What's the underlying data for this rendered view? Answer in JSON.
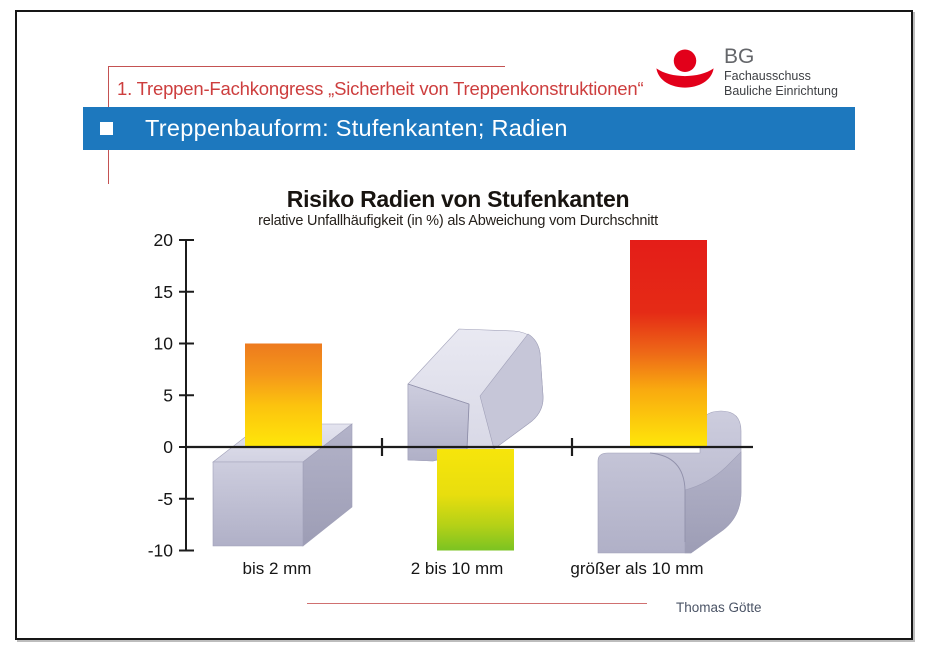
{
  "slide": {
    "congress_line": "1. Treppen-Fachkongress „Sicherheit von Treppenkonstruktionen“",
    "logo": {
      "org": "BG",
      "dept_line1": "Fachausschuss",
      "dept_line2": "Bauliche Einrichtung"
    },
    "title_bar": {
      "title": "Treppenbauform: Stufenkanten; Radien"
    },
    "author": "Thomas Götte"
  },
  "chart_data": {
    "type": "bar",
    "title": "Risiko Radien von Stufenkanten",
    "subtitle": "relative Unfallhäufigkeit (in %) als Abweichung vom Durchschnitt",
    "categories": [
      "bis 2 mm",
      "2 bis 10 mm",
      "größer als 10 mm"
    ],
    "values": [
      10,
      -10,
      20
    ],
    "unit": "%",
    "ylim": [
      -10,
      20
    ],
    "yticks": [
      20,
      15,
      10,
      5,
      0,
      -5,
      -10
    ],
    "grid": false,
    "legend": null,
    "illustrations": [
      "sharp-edge-step-block",
      "small-radius-step-block",
      "large-radius-step-block"
    ],
    "bar_gradients": [
      {
        "name": "orange-to-yellow",
        "stops": [
          [
            0,
            "#ed7a1e"
          ],
          [
            30,
            "#f5971a"
          ],
          [
            60,
            "#fcc30e"
          ],
          [
            100,
            "#ffe70a"
          ]
        ]
      },
      {
        "name": "yellow-to-green",
        "stops": [
          [
            0,
            "#f7e50b"
          ],
          [
            45,
            "#e8de0e"
          ],
          [
            75,
            "#b5d117"
          ],
          [
            100,
            "#7bc322"
          ]
        ]
      },
      {
        "name": "red-to-yellow",
        "stops": [
          [
            0,
            "#e41d18"
          ],
          [
            35,
            "#e52b16"
          ],
          [
            55,
            "#ee6a17"
          ],
          [
            72,
            "#f9a90f"
          ],
          [
            100,
            "#ffe70a"
          ]
        ]
      }
    ]
  },
  "colors": {
    "accent_blue": "#1d78be",
    "accent_red": "#cc3e3e",
    "footer_line_red": "#d07070",
    "logo_red": "#e2001a",
    "block_lavender": "#c9c9db",
    "axis": "#1c1c1c"
  }
}
